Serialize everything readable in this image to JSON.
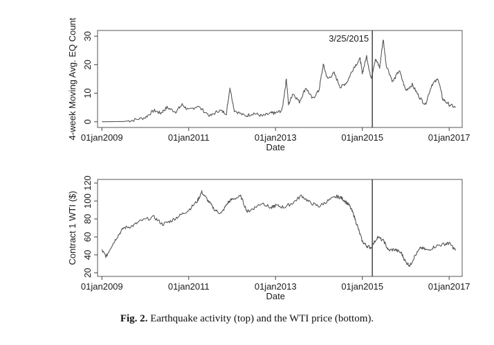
{
  "caption": {
    "label": "Fig. 2.",
    "text": "Earthquake activity (top) and the WTI price (bottom)."
  },
  "chart_data": [
    {
      "type": "line",
      "xlabel": "Date",
      "ylabel": "4-week Moving Avg. EQ Count",
      "xlim": [
        2008.9,
        2017.3
      ],
      "ylim": [
        -2,
        32
      ],
      "xticks": [
        2009,
        2011,
        2013,
        2015,
        2017
      ],
      "xtick_labels": [
        "01jan2009",
        "01jan2011",
        "01jan2013",
        "01jan2015",
        "01jan2017"
      ],
      "yticks": [
        0,
        10,
        20,
        30
      ],
      "ytick_labels": [
        "0",
        "10",
        "20",
        "30"
      ],
      "grid": false,
      "annotation": {
        "x": 2015.23,
        "label": "3/25/2015"
      },
      "series": [
        {
          "x": [
            2009.0,
            2009.5,
            2009.7,
            2010.0,
            2010.2,
            2010.35,
            2010.5,
            2010.7,
            2010.85,
            2011.0,
            2011.2,
            2011.5,
            2011.7,
            2011.87,
            2011.95,
            2012.05,
            2012.3,
            2012.5,
            2012.7,
            2012.9,
            2013.0,
            2013.15,
            2013.25,
            2013.3,
            2013.4,
            2013.55,
            2013.7,
            2013.85,
            2014.0,
            2014.1,
            2014.2,
            2014.35,
            2014.5,
            2014.65,
            2014.8,
            2014.95,
            2015.0,
            2015.1,
            2015.2,
            2015.3,
            2015.4,
            2015.48,
            2015.55,
            2015.7,
            2015.85,
            2016.0,
            2016.15,
            2016.3,
            2016.45,
            2016.6,
            2016.75,
            2016.85,
            2017.0,
            2017.15
          ],
          "y": [
            0,
            0.1,
            0.5,
            1.5,
            4,
            3,
            5,
            3.5,
            6,
            4,
            5.5,
            2,
            4,
            3,
            12,
            4,
            2,
            3,
            2,
            3,
            3,
            4,
            15,
            6,
            10,
            7,
            12,
            8,
            11,
            20,
            15,
            17,
            12,
            14,
            19,
            22,
            17,
            23,
            15,
            22,
            19,
            29,
            20,
            14,
            18,
            11,
            13,
            9,
            6,
            13,
            15,
            8,
            6,
            5
          ]
        }
      ]
    },
    {
      "type": "line",
      "xlabel": "Date",
      "ylabel": "Contract 1 WTI ($)",
      "xlim": [
        2008.9,
        2017.3
      ],
      "ylim": [
        16,
        124
      ],
      "xticks": [
        2009,
        2011,
        2013,
        2015,
        2017
      ],
      "xtick_labels": [
        "01jan2009",
        "01jan2011",
        "01jan2013",
        "01jan2015",
        "01jan2017"
      ],
      "yticks": [
        20,
        40,
        60,
        80,
        100,
        120
      ],
      "ytick_labels": [
        "20",
        "40",
        "60",
        "80",
        "100",
        "120"
      ],
      "grid": false,
      "annotation": {
        "x": 2015.23,
        "label": ""
      },
      "series": [
        {
          "x": [
            2009.0,
            2009.1,
            2009.2,
            2009.35,
            2009.5,
            2009.7,
            2009.9,
            2010.2,
            2010.4,
            2010.6,
            2010.8,
            2011.0,
            2011.2,
            2011.3,
            2011.45,
            2011.6,
            2011.75,
            2011.9,
            2012.0,
            2012.2,
            2012.35,
            2012.5,
            2012.7,
            2012.9,
            2013.0,
            2013.2,
            2013.4,
            2013.6,
            2013.8,
            2014.0,
            2014.2,
            2014.4,
            2014.5,
            2014.6,
            2014.7,
            2014.8,
            2014.9,
            2015.0,
            2015.1,
            2015.2,
            2015.35,
            2015.5,
            2015.6,
            2015.75,
            2015.9,
            2016.0,
            2016.1,
            2016.2,
            2016.35,
            2016.5,
            2016.7,
            2016.9,
            2017.0,
            2017.15
          ],
          "y": [
            45,
            38,
            48,
            60,
            70,
            72,
            78,
            82,
            74,
            78,
            84,
            90,
            100,
            110,
            100,
            90,
            86,
            98,
            102,
            105,
            88,
            92,
            98,
            92,
            95,
            93,
            98,
            106,
            98,
            94,
            100,
            105,
            104,
            100,
            95,
            85,
            70,
            55,
            50,
            48,
            60,
            55,
            45,
            46,
            42,
            32,
            28,
            38,
            48,
            45,
            50,
            52,
            53,
            45
          ]
        }
      ]
    }
  ]
}
